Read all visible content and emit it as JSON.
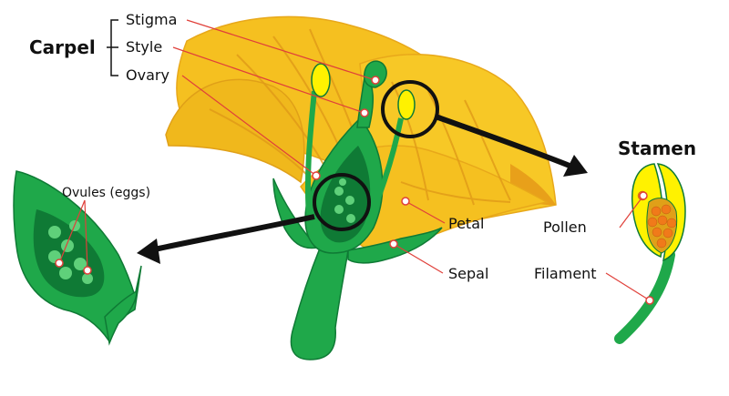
{
  "labels": {
    "carpel": "Carpel",
    "stigma": "Stigma",
    "style": "Style",
    "ovary": "Ovary",
    "petal": "Petal",
    "sepal": "Sepal",
    "stamen": "Stamen",
    "pollen": "Pollen",
    "filament": "Filament",
    "ovules": "Ovules (eggs)"
  },
  "colors": {
    "petal": "#f5c020",
    "petal_shadow": "#e8a81a",
    "petal_streak": "#e09a18",
    "green": "#1fa84a",
    "green_dark": "#0f7a35",
    "green_light": "#5fd07a",
    "anther_yellow": "#fff200",
    "pollen_orange": "#f07a1a",
    "leader_line": "#e0403a",
    "outline": "#111111"
  }
}
